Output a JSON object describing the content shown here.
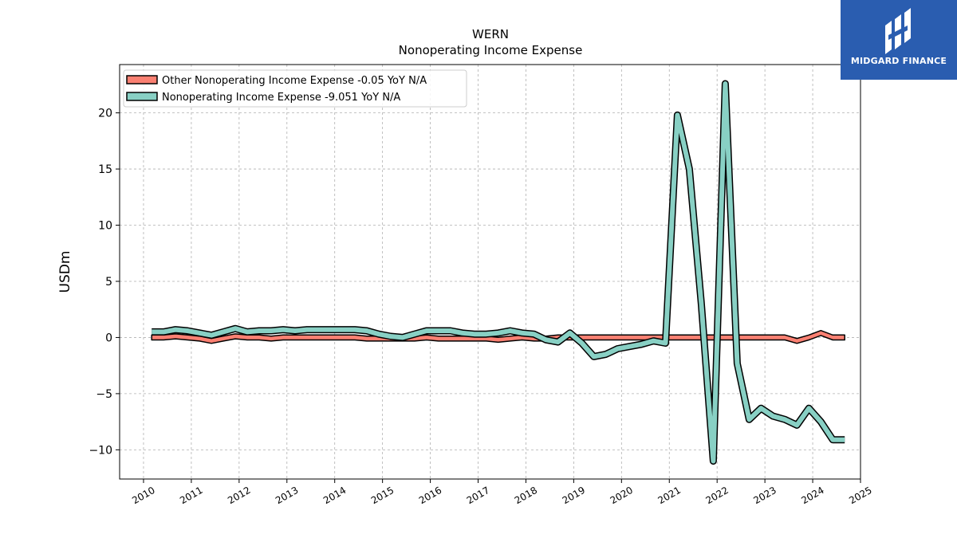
{
  "chart_data": {
    "type": "line",
    "title": "WERN",
    "subtitle": "Nonoperating Income Expense",
    "ylabel": "USDm",
    "xlabel": "",
    "xlim": [
      2009.5,
      2025.0
    ],
    "ylim": [
      -12.6,
      24.3
    ],
    "x_ticks": [
      "2010",
      "2011",
      "2012",
      "2013",
      "2014",
      "2015",
      "2016",
      "2017",
      "2018",
      "2019",
      "2020",
      "2021",
      "2022",
      "2023",
      "2024",
      "2025"
    ],
    "y_ticks": [
      20,
      15,
      10,
      5,
      0,
      -5,
      -10
    ],
    "y_tick_labels": [
      "20",
      "15",
      "10",
      "5",
      "0",
      "−5",
      "−10"
    ],
    "grid": true,
    "legend_position": "top-left",
    "series": [
      {
        "name": "Other Nonoperating Income Expense  -0.05 YoY N/A",
        "style": "filled-band",
        "color": "#fa8072",
        "x": [
          2010.17,
          2010.42,
          2010.67,
          2010.92,
          2011.17,
          2011.42,
          2011.67,
          2011.92,
          2012.17,
          2012.42,
          2012.67,
          2012.92,
          2013.17,
          2013.42,
          2013.67,
          2013.92,
          2014.17,
          2014.42,
          2014.67,
          2014.92,
          2015.17,
          2015.42,
          2015.67,
          2015.92,
          2016.17,
          2016.42,
          2016.67,
          2016.92,
          2017.17,
          2017.42,
          2017.67,
          2017.92,
          2018.17,
          2018.42,
          2018.67,
          2018.92,
          2019.17,
          2019.42,
          2019.67,
          2019.92,
          2020.17,
          2020.42,
          2020.67,
          2020.92,
          2021.17,
          2021.42,
          2021.67,
          2021.92,
          2022.17,
          2022.42,
          2022.67,
          2022.92,
          2023.17,
          2023.42,
          2023.67,
          2023.92,
          2024.17,
          2024.42,
          2024.67
        ],
        "values": [
          0.0,
          0.0,
          0.1,
          0.0,
          -0.1,
          -0.3,
          -0.1,
          0.1,
          0.0,
          0.0,
          -0.1,
          0.0,
          0.0,
          0.0,
          0.0,
          0.0,
          0.0,
          0.0,
          -0.1,
          -0.1,
          -0.1,
          -0.1,
          -0.1,
          0.0,
          -0.1,
          -0.1,
          -0.1,
          -0.1,
          -0.1,
          -0.2,
          -0.1,
          0.0,
          -0.1,
          -0.1,
          0.0,
          0.0,
          0.0,
          0.0,
          0.0,
          0.0,
          0.0,
          0.0,
          0.0,
          0.0,
          0.0,
          0.0,
          0.0,
          0.0,
          0.0,
          0.0,
          0.0,
          0.0,
          0.0,
          0.0,
          -0.3,
          0.0,
          0.4,
          0.0,
          0.0
        ]
      },
      {
        "name": "Nonoperating Income Expense  -9.051 YoY N/A",
        "style": "thick-outlined-line",
        "color": "#88d0c4",
        "x": [
          2010.17,
          2010.42,
          2010.67,
          2010.92,
          2011.17,
          2011.42,
          2011.67,
          2011.92,
          2012.17,
          2012.42,
          2012.67,
          2012.92,
          2013.17,
          2013.42,
          2013.67,
          2013.92,
          2014.17,
          2014.42,
          2014.67,
          2014.92,
          2015.17,
          2015.42,
          2015.67,
          2015.92,
          2016.17,
          2016.42,
          2016.67,
          2016.92,
          2017.17,
          2017.42,
          2017.67,
          2017.92,
          2018.17,
          2018.42,
          2018.67,
          2018.92,
          2019.17,
          2019.42,
          2019.67,
          2019.92,
          2020.17,
          2020.42,
          2020.67,
          2020.92,
          2021.17,
          2021.42,
          2021.67,
          2021.92,
          2022.17,
          2022.42,
          2022.67,
          2022.92,
          2023.17,
          2023.42,
          2023.67,
          2023.92,
          2024.17,
          2024.42,
          2024.67
        ],
        "values": [
          0.5,
          0.5,
          0.7,
          0.6,
          0.4,
          0.2,
          0.5,
          0.8,
          0.5,
          0.6,
          0.6,
          0.7,
          0.6,
          0.7,
          0.7,
          0.7,
          0.7,
          0.7,
          0.6,
          0.3,
          0.1,
          0.0,
          0.3,
          0.6,
          0.6,
          0.6,
          0.4,
          0.3,
          0.3,
          0.4,
          0.6,
          0.4,
          0.3,
          -0.2,
          -0.4,
          0.4,
          -0.5,
          -1.7,
          -1.5,
          -1.0,
          -0.8,
          -0.6,
          -0.3,
          -0.5,
          19.8,
          15.0,
          3.0,
          -11.0,
          22.6,
          -2.3,
          -7.3,
          -6.3,
          -7.0,
          -7.3,
          -7.8,
          -6.3,
          -7.5,
          -9.1,
          -9.1
        ]
      }
    ]
  },
  "logo": {
    "name": "MIDGARD FINANCE"
  }
}
